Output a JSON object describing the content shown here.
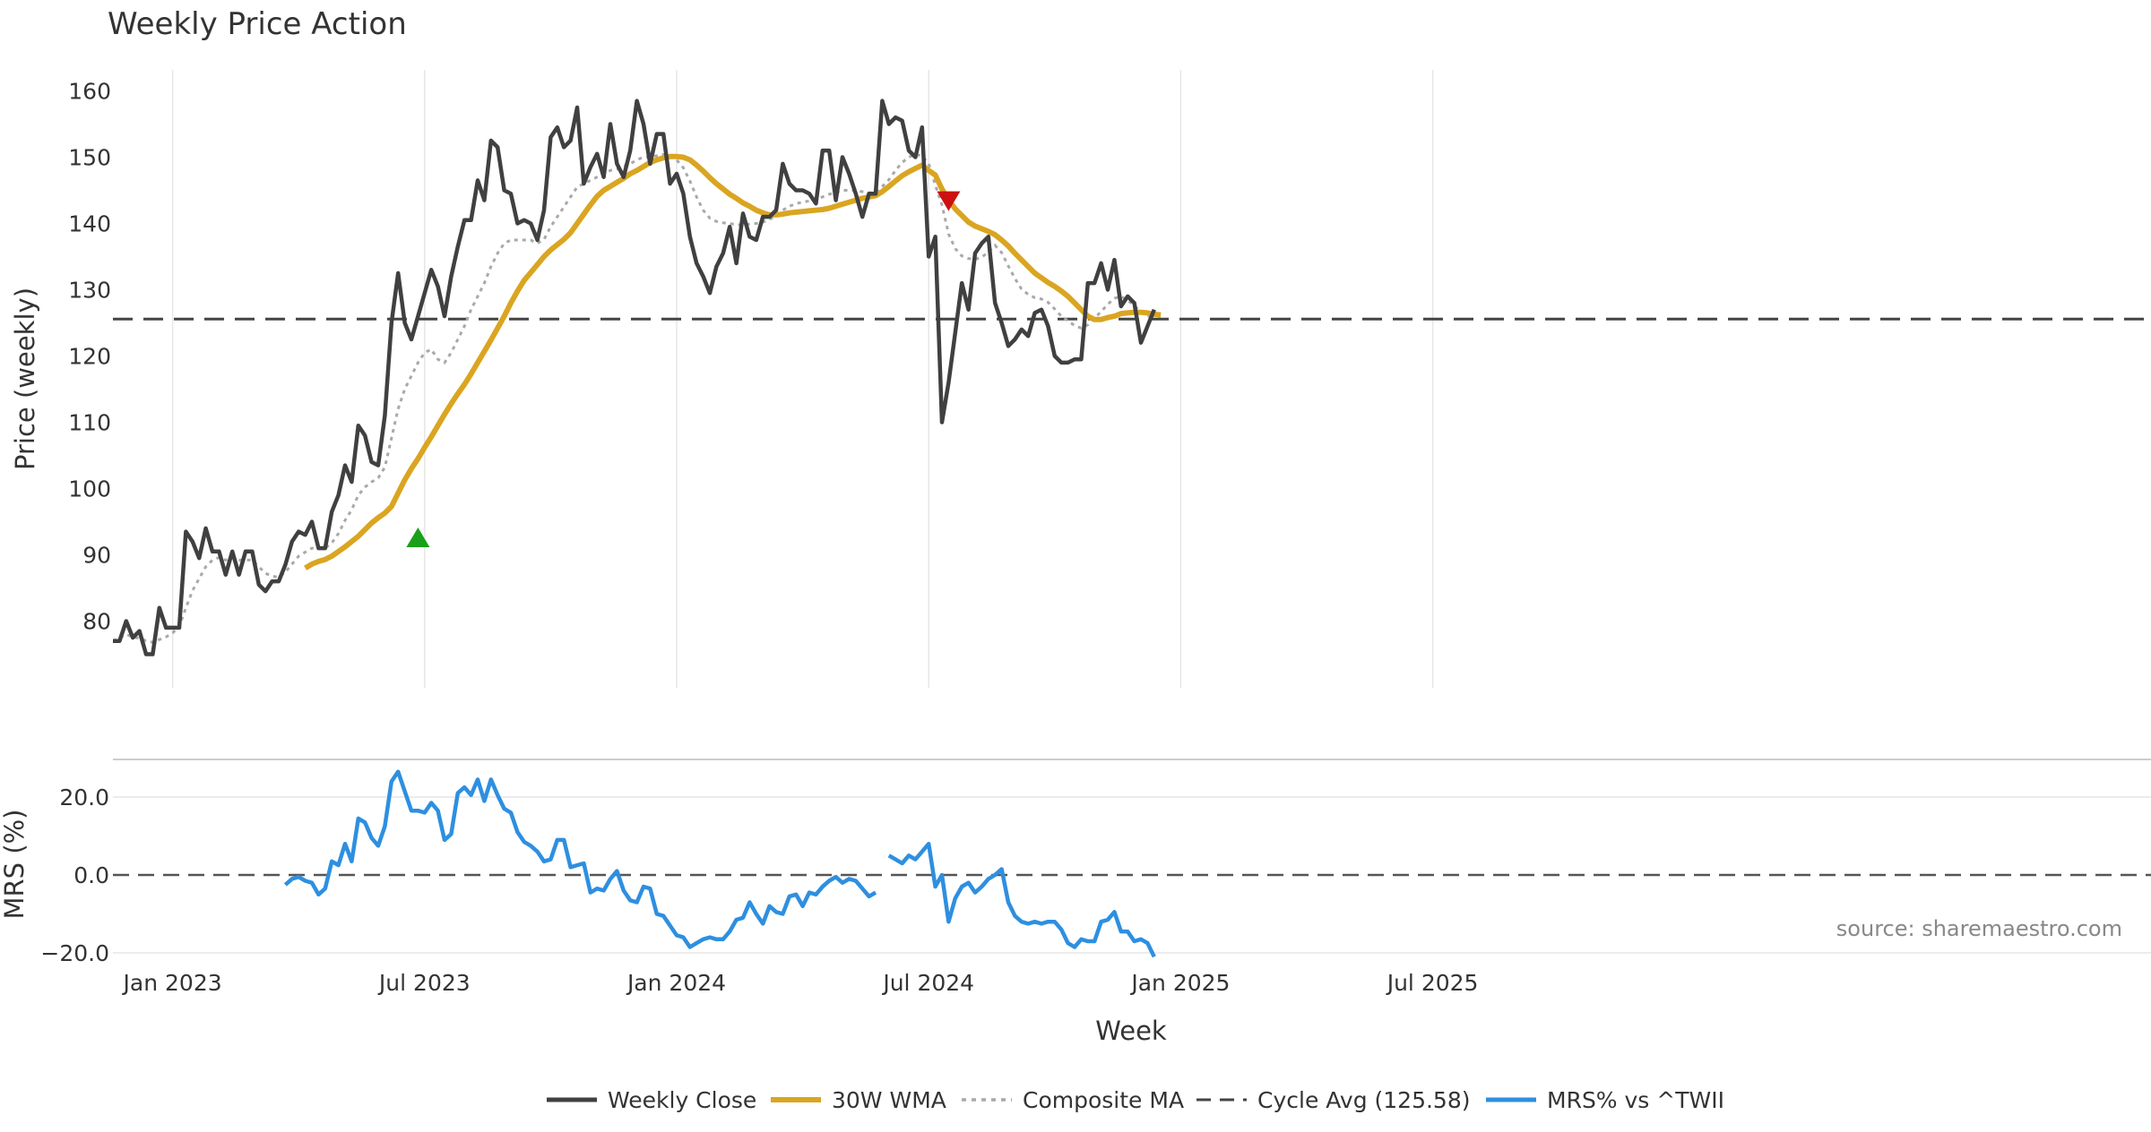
{
  "chart_data": {
    "type": "line",
    "title": "Weekly Price Action",
    "xlabel": "Week",
    "source": "source: sharemaestro.com",
    "x_ticks": [
      "Jan 2023",
      "Jul 2023",
      "Jan 2024",
      "Jul 2024",
      "Jan 2025",
      "Jul 2025"
    ],
    "colors": {
      "close": "#404040",
      "wma": "#DAA520",
      "composite": "#A9A9A9",
      "cycle": "#444444",
      "mrs": "#2E8FE0",
      "buy": "#1AA01A",
      "sell": "#CC1111",
      "grid": "#E6E6E6"
    },
    "price_panel": {
      "ylabel": "Price (weekly)",
      "yticks": [
        80,
        90,
        100,
        110,
        120,
        130,
        140,
        150,
        160
      ],
      "ylim": [
        70,
        163
      ],
      "cycle_avg": 125.58,
      "signals": [
        {
          "type": "buy",
          "week": 46,
          "value": 92.5
        },
        {
          "type": "sell",
          "week": 126,
          "value": 143.5
        }
      ],
      "series": [
        {
          "name": "Weekly Close",
          "start_week": 0,
          "values": [
            77,
            77,
            80,
            77.5,
            78.5,
            75,
            75,
            82,
            79,
            79,
            79,
            93.5,
            92,
            89.5,
            94,
            90.5,
            90.5,
            87,
            90.5,
            87,
            90.5,
            90.5,
            85.5,
            84.5,
            86,
            86,
            88.5,
            92,
            93.5,
            93,
            95,
            91,
            91,
            96.5,
            99,
            103.5,
            101,
            109.5,
            108,
            104,
            103.5,
            111,
            125,
            132.5,
            125,
            122.5,
            126,
            129.5,
            133,
            130.5,
            126,
            132,
            136.5,
            140.5,
            140.5,
            146.5,
            143.5,
            152.5,
            151.5,
            145,
            144.5,
            140,
            140.5,
            140,
            137.5,
            142,
            153,
            154.5,
            151.5,
            152.5,
            157.5,
            146,
            148.5,
            150.5,
            147,
            155,
            149,
            147,
            151,
            158.5,
            155,
            149,
            153.5,
            153.5,
            146,
            147.5,
            144.5,
            138,
            134,
            132,
            129.5,
            133.5,
            135.5,
            139.5,
            134,
            141.5,
            138,
            137.5,
            141,
            141,
            142,
            149,
            146,
            145,
            145,
            144.5,
            143,
            151,
            151,
            143.5,
            150,
            147.5,
            144.5,
            141,
            144.5,
            144.5,
            158.5,
            155,
            156,
            155.5,
            151,
            150,
            154.5,
            135,
            138,
            110,
            116,
            123.5,
            131,
            127,
            135.5,
            137,
            138,
            128,
            125,
            121.5,
            122.5,
            124,
            123,
            126.5,
            127,
            124.5,
            120,
            119,
            119,
            119.5,
            119.5,
            131,
            131,
            134,
            130,
            134.5,
            127.5,
            129,
            128,
            122,
            124.5,
            127
          ]
        },
        {
          "name": "30W WMA",
          "start_week": 29,
          "values": [
            88,
            88.6,
            89,
            89.3,
            89.8,
            90.5,
            91.2,
            92,
            92.8,
            93.8,
            94.8,
            95.6,
            96.3,
            97.3,
            99.3,
            101.3,
            103,
            104.5,
            106.2,
            107.8,
            109.5,
            111.2,
            112.8,
            114.3,
            115.7,
            117.3,
            119,
            120.7,
            122.4,
            124.2,
            126,
            128,
            129.8,
            131.4,
            132.6,
            133.8,
            135,
            136,
            136.8,
            137.6,
            138.6,
            140,
            141.4,
            142.8,
            144.1,
            145,
            145.6,
            146.2,
            146.8,
            147.5,
            148,
            148.6,
            149.2,
            149.6,
            149.9,
            150.1,
            150.1,
            150,
            149.6,
            148.8,
            147.9,
            146.9,
            146,
            145.2,
            144.4,
            143.8,
            143.1,
            142.6,
            142,
            141.6,
            141.3,
            141.3,
            141.4,
            141.6,
            141.7,
            141.8,
            141.9,
            142,
            142.1,
            142.3,
            142.6,
            142.9,
            143.2,
            143.5,
            143.8,
            144,
            144.2,
            144.8,
            145.6,
            146.4,
            147.2,
            147.8,
            148.3,
            148.8,
            148,
            147.3,
            145.2,
            143.5,
            142.2,
            141.2,
            140.2,
            139.6,
            139.2,
            138.8,
            138.3,
            137.5,
            136.6,
            135.5,
            134.5,
            133.5,
            132.5,
            131.8,
            131.1,
            130.5,
            129.8,
            129,
            128,
            127,
            126,
            125.5,
            125.5,
            125.8,
            126,
            126.4,
            126.5,
            126.6,
            126.6,
            126.5,
            126.3,
            126.2
          ]
        },
        {
          "name": "Composite MA",
          "start_week": 0,
          "values": [
            77,
            77.5,
            78,
            77.6,
            77.4,
            77,
            76.8,
            77.2,
            77.6,
            78.2,
            79.2,
            82,
            84.6,
            86.4,
            88.2,
            89.2,
            89.6,
            89.2,
            89.6,
            89.2,
            89.2,
            89.2,
            88.2,
            87.2,
            86.8,
            86.6,
            87.4,
            88.6,
            89.8,
            90.4,
            91,
            91,
            91,
            91.8,
            93.2,
            95.2,
            96.8,
            99,
            100.2,
            101,
            101.6,
            103.2,
            107.6,
            112,
            115,
            117,
            119,
            120.5,
            121,
            119.5,
            119,
            120.5,
            122.5,
            124.5,
            127,
            129,
            131,
            133.5,
            135.5,
            137,
            137.5,
            137.5,
            137.5,
            137.5,
            137,
            137.6,
            139.5,
            141,
            142.5,
            144,
            145.5,
            146,
            146.5,
            147,
            147.4,
            148,
            148.2,
            148.6,
            149,
            149.6,
            150,
            150.1,
            150.2,
            150.4,
            150.2,
            149.6,
            148.4,
            146.4,
            144,
            142,
            140.8,
            140.3,
            140.1,
            140,
            139.8,
            139.8,
            139.9,
            140,
            140.2,
            140.6,
            141.2,
            142,
            142.6,
            143,
            143.2,
            143.4,
            143.6,
            144,
            144.4,
            144.7,
            145,
            145,
            145,
            144.8,
            144.6,
            144.8,
            145.6,
            146.6,
            148,
            149.2,
            150,
            150.4,
            150.2,
            149,
            145.8,
            142.8,
            138.4,
            136.2,
            135.1,
            134.7,
            134.6,
            134.9,
            135.7,
            136.7,
            135.6,
            133.6,
            131.7,
            130.1,
            129.3,
            128.8,
            128.6,
            128.1,
            127.1,
            126,
            125.3,
            124.6,
            124.2,
            124.7,
            125.7,
            126.7,
            127.8,
            128.7,
            129,
            128.4,
            127.6,
            126.6,
            126,
            126,
            126.3
          ]
        },
        {
          "name": "Cycle Avg (125.58)",
          "constant": 125.58
        }
      ]
    },
    "mrs_panel": {
      "ylabel": "MRS (%)",
      "yticks": [
        "20.0",
        "0.0",
        "−20.0"
      ],
      "ytick_values": [
        20,
        0,
        -20
      ],
      "ylim": [
        -22,
        27
      ],
      "series": [
        {
          "name": "MRS% vs ^TWII",
          "segments": [
            {
              "start_week": 26,
              "values": [
                -2.5,
                -1,
                -0.5,
                -1.5,
                -2,
                -5,
                -3.5,
                3.5,
                2.5,
                8,
                3.5,
                14.5,
                13.5,
                9.5,
                7.5,
                12.5,
                24,
                26.5,
                21.5,
                16.5,
                16.5,
                16,
                18.5,
                16.5,
                9,
                10.5,
                21,
                22.5,
                20.5,
                24.5,
                19,
                24.5,
                20.5,
                17,
                16,
                11,
                8.5,
                7.5,
                6,
                3.5,
                4,
                9,
                9,
                2,
                2.5,
                3,
                -4.5,
                -3.5,
                -4,
                -1,
                1,
                -4,
                -6.5,
                -7,
                -3,
                -3.5,
                -10,
                -10.5,
                -13,
                -15.5,
                -16,
                -18.5,
                -17.5,
                -16.5,
                -16,
                -16.5,
                -16.5,
                -14.5,
                -11.5,
                -11,
                -7,
                -10,
                -12.5,
                -8,
                -9.5,
                -10,
                -5.5,
                -5,
                -8,
                -4.5,
                -5,
                -3,
                -1.5,
                -0.5,
                -2,
                -1,
                -1.5,
                -3.5,
                -5.5,
                -4.5
              ]
            },
            {
              "start_week": 117,
              "values": [
                5,
                4,
                3,
                5,
                4,
                6,
                8,
                -3,
                0,
                -12,
                -6,
                -3,
                -2,
                -4.5,
                -3,
                -1,
                0,
                1.5,
                -7,
                -10.5,
                -12,
                -12.5,
                -12,
                -12.5,
                -12,
                -12,
                -14,
                -17.5,
                -18.5,
                -16.5,
                -17,
                -17,
                -12,
                -11.5,
                -9.5,
                -14.5,
                -14.5,
                -17,
                -16.5,
                -17.5,
                -21
              ]
            }
          ]
        }
      ]
    },
    "legend": {
      "placement": "bottom-center",
      "items": [
        {
          "label": "Weekly Close",
          "key": "close"
        },
        {
          "label": "30W WMA",
          "key": "wma"
        },
        {
          "label": "Composite MA",
          "key": "composite"
        },
        {
          "label": "Cycle Avg (125.58)",
          "key": "cycle"
        },
        {
          "label": "MRS% vs ^TWII",
          "key": "mrs"
        }
      ]
    }
  }
}
